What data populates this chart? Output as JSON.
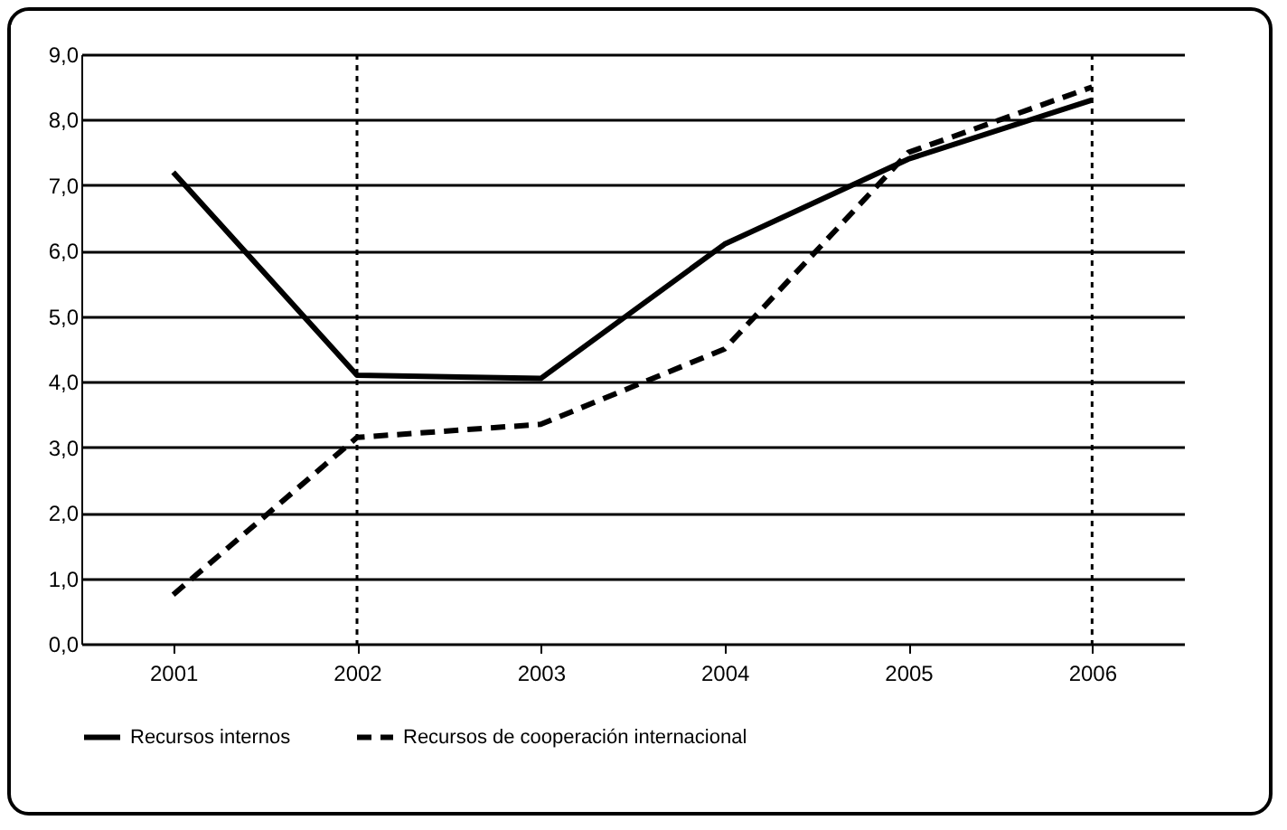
{
  "chart_data": {
    "type": "line",
    "categories": [
      "2001",
      "2002",
      "2003",
      "2004",
      "2005",
      "2006"
    ],
    "series": [
      {
        "name": "Recursos internos",
        "color": "#000000",
        "line_style": "solid",
        "values": [
          7.2,
          4.1,
          4.05,
          6.1,
          7.4,
          8.3
        ]
      },
      {
        "name": "Recursos de cooperación internacional",
        "color": "#000000",
        "line_style": "dashed",
        "values": [
          0.75,
          3.15,
          3.35,
          4.5,
          7.5,
          8.5
        ]
      }
    ],
    "ylim": [
      0,
      9
    ],
    "yticks": [
      {
        "value": 0,
        "label": "0,0"
      },
      {
        "value": 1,
        "label": "1,0"
      },
      {
        "value": 2,
        "label": "2,0"
      },
      {
        "value": 3,
        "label": "3,0"
      },
      {
        "value": 4,
        "label": "4,0"
      },
      {
        "value": 5,
        "label": "5,0"
      },
      {
        "value": 6,
        "label": "6,0"
      },
      {
        "value": 7,
        "label": "7,0"
      },
      {
        "value": 8,
        "label": "8,0"
      },
      {
        "value": 9,
        "label": "9,0"
      }
    ],
    "ref_lines": [
      {
        "axis": "x",
        "value": "2002",
        "color": "#000000",
        "line_style": "dotted"
      },
      {
        "axis": "x",
        "value": "2006",
        "color": "#000000",
        "line_style": "dotted"
      }
    ],
    "grid": "y",
    "legend": "bottom",
    "marker": "none"
  }
}
